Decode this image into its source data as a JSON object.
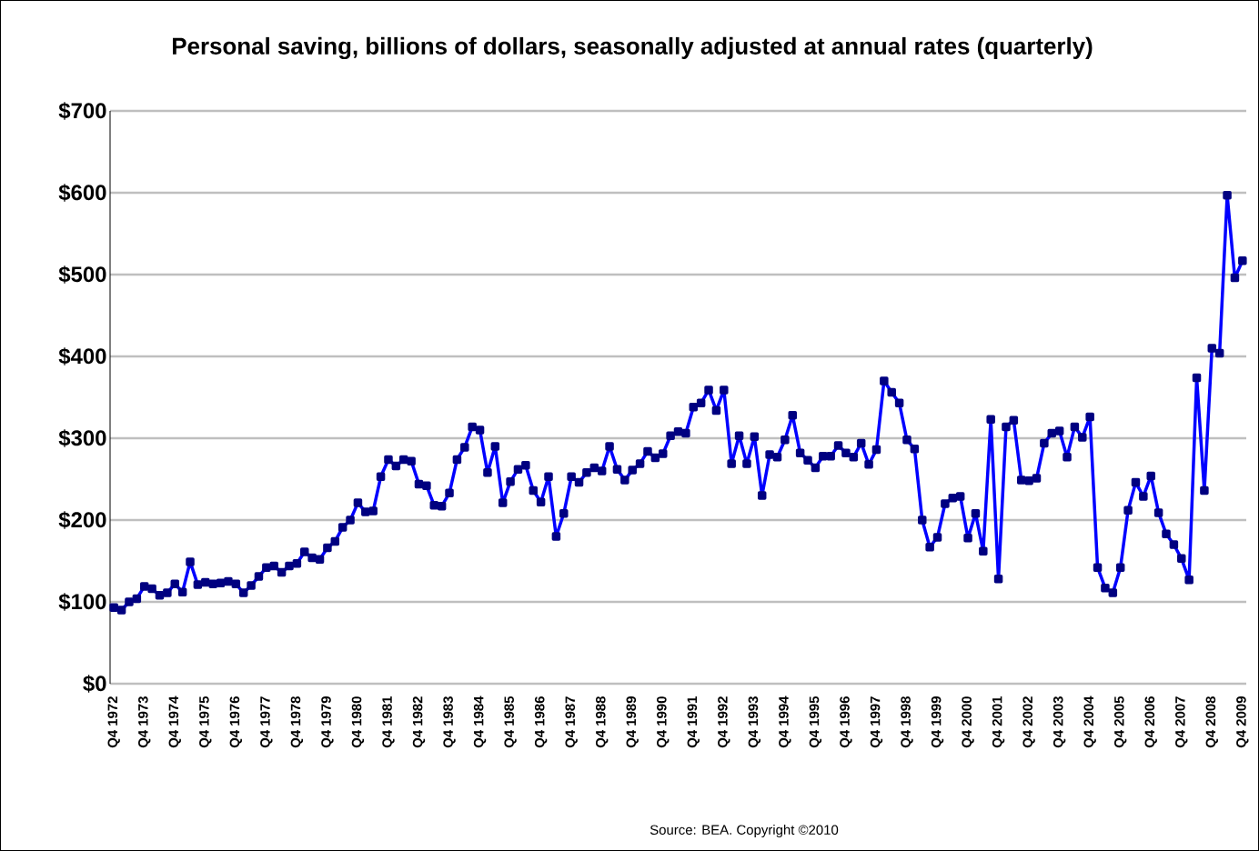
{
  "chart_data": {
    "type": "line",
    "title": "Personal saving, billions of dollars, seasonally adjusted at annual rates (quarterly)",
    "categories": [
      "Q4 1972",
      null,
      null,
      null,
      "Q4 1973",
      null,
      null,
      null,
      "Q4 1974",
      null,
      null,
      null,
      "Q4 1975",
      null,
      null,
      null,
      "Q4 1976",
      null,
      null,
      null,
      "Q4 1977",
      null,
      null,
      null,
      "Q4 1978",
      null,
      null,
      null,
      "Q4 1979",
      null,
      null,
      null,
      "Q4 1980",
      null,
      null,
      null,
      "Q4 1981",
      null,
      null,
      null,
      "Q4 1982",
      null,
      null,
      null,
      "Q4 1983",
      null,
      null,
      null,
      "Q4 1984",
      null,
      null,
      null,
      "Q4 1985",
      null,
      null,
      null,
      "Q4 1986",
      null,
      null,
      null,
      "Q4 1987",
      null,
      null,
      null,
      "Q4 1988",
      null,
      null,
      null,
      "Q4 1989",
      null,
      null,
      null,
      "Q4 1990",
      null,
      null,
      null,
      "Q4 1991",
      null,
      null,
      null,
      "Q4 1992",
      null,
      null,
      null,
      "Q4 1993",
      null,
      null,
      null,
      "Q4 1994",
      null,
      null,
      null,
      "Q4 1995",
      null,
      null,
      null,
      "Q4 1996",
      null,
      null,
      null,
      "Q4 1997",
      null,
      null,
      null,
      "Q4 1998",
      null,
      null,
      null,
      "Q4 1999",
      null,
      null,
      null,
      "Q4 2000",
      null,
      null,
      null,
      "Q4 2001",
      null,
      null,
      null,
      "Q4 2002",
      null,
      null,
      null,
      "Q4 2003",
      null,
      null,
      null,
      "Q4 2004",
      null,
      null,
      null,
      "Q4 2005",
      null,
      null,
      null,
      "Q4 2006",
      null,
      null,
      null,
      "Q4 2007",
      null,
      null,
      null,
      "Q4 2008",
      null,
      null,
      null,
      "Q4 2009"
    ],
    "series": [
      {
        "color": "#0000ff",
        "values": [
          93,
          90,
          100,
          104,
          119,
          116,
          108,
          111,
          122,
          112,
          149,
          121,
          124,
          122,
          123,
          125,
          122,
          111,
          120,
          131,
          142,
          144,
          136,
          144,
          147,
          161,
          154,
          152,
          166,
          174,
          191,
          200,
          221,
          210,
          211,
          253,
          274,
          266,
          274,
          272,
          244,
          242,
          218,
          217,
          233,
          274,
          289,
          314,
          310,
          258,
          290,
          221,
          247,
          262,
          267,
          236,
          222,
          253,
          180,
          208,
          253,
          246,
          258,
          264,
          260,
          290,
          262,
          249,
          261,
          269,
          284,
          276,
          281,
          303,
          308,
          306,
          338,
          343,
          359,
          334,
          359,
          269,
          303,
          269,
          302,
          230,
          280,
          277,
          298,
          328,
          282,
          273,
          264,
          278,
          278,
          291,
          282,
          277,
          294,
          268,
          286,
          370,
          356,
          343,
          298,
          287,
          200,
          167,
          179,
          220,
          227,
          229,
          178,
          208,
          162,
          323,
          128,
          314,
          322,
          249,
          248,
          251,
          294,
          306,
          309,
          277,
          314,
          301,
          326,
          142,
          117,
          111,
          142,
          212,
          246,
          229,
          254,
          209,
          183,
          170,
          153,
          127,
          374,
          236,
          410,
          404,
          597,
          496,
          517
        ]
      }
    ],
    "ylim": [
      0,
      700
    ],
    "yticks": [
      {
        "value": 0,
        "label": "$0"
      },
      {
        "value": 100,
        "label": "$100"
      },
      {
        "value": 200,
        "label": "$200"
      },
      {
        "value": 300,
        "label": "$300"
      },
      {
        "value": 400,
        "label": "$400"
      },
      {
        "value": 500,
        "label": "$500"
      },
      {
        "value": 600,
        "label": "$600"
      },
      {
        "value": 700,
        "label": "$700"
      }
    ],
    "grid": "y",
    "marker": "square",
    "line_style": "solid",
    "annotations": [
      "Source: BEA. Copyright ©2010"
    ]
  }
}
